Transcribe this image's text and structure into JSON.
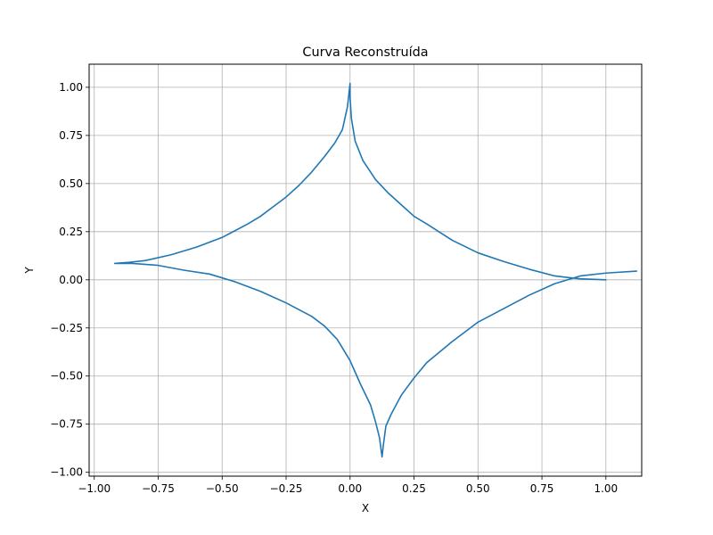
{
  "chart_data": {
    "type": "line",
    "title": "Curva Reconstruída",
    "xlabel": "X",
    "ylabel": "Y",
    "xlim": [
      -1.02,
      1.14
    ],
    "ylim": [
      -1.02,
      1.12
    ],
    "grid": true,
    "xticks": [
      -1.0,
      -0.75,
      -0.5,
      -0.25,
      0.0,
      0.25,
      0.5,
      0.75,
      1.0
    ],
    "xtick_labels": [
      "−1.00",
      "−0.75",
      "−0.50",
      "−0.25",
      "0.00",
      "0.25",
      "0.50",
      "0.75",
      "1.00"
    ],
    "yticks": [
      -1.0,
      -0.75,
      -0.5,
      -0.25,
      0.0,
      0.25,
      0.5,
      0.75,
      1.0
    ],
    "ytick_labels": [
      "−1.00",
      "−0.75",
      "−0.50",
      "−0.25",
      "0.00",
      "0.25",
      "0.50",
      "0.75",
      "1.00"
    ],
    "series": [
      {
        "color": "#1f77b4",
        "points": [
          [
            1.0,
            0.0
          ],
          [
            0.9,
            0.005
          ],
          [
            0.8,
            0.02
          ],
          [
            0.7,
            0.055
          ],
          [
            0.6,
            0.095
          ],
          [
            0.5,
            0.14
          ],
          [
            0.4,
            0.205
          ],
          [
            0.3,
            0.29
          ],
          [
            0.25,
            0.33
          ],
          [
            0.2,
            0.39
          ],
          [
            0.15,
            0.45
          ],
          [
            0.1,
            0.52
          ],
          [
            0.05,
            0.62
          ],
          [
            0.02,
            0.72
          ],
          [
            0.005,
            0.84
          ],
          [
            0.0,
            0.95
          ],
          [
            0.0,
            1.02
          ],
          [
            -0.01,
            0.9
          ],
          [
            -0.03,
            0.78
          ],
          [
            -0.06,
            0.71
          ],
          [
            -0.1,
            0.64
          ],
          [
            -0.15,
            0.56
          ],
          [
            -0.2,
            0.49
          ],
          [
            -0.25,
            0.43
          ],
          [
            -0.3,
            0.38
          ],
          [
            -0.35,
            0.33
          ],
          [
            -0.4,
            0.29
          ],
          [
            -0.5,
            0.22
          ],
          [
            -0.6,
            0.17
          ],
          [
            -0.7,
            0.13
          ],
          [
            -0.8,
            0.1
          ],
          [
            -0.87,
            0.09
          ],
          [
            -0.92,
            0.085
          ],
          [
            -0.85,
            0.085
          ],
          [
            -0.75,
            0.075
          ],
          [
            -0.65,
            0.05
          ],
          [
            -0.55,
            0.03
          ],
          [
            -0.45,
            -0.01
          ],
          [
            -0.35,
            -0.06
          ],
          [
            -0.25,
            -0.12
          ],
          [
            -0.15,
            -0.19
          ],
          [
            -0.1,
            -0.24
          ],
          [
            -0.05,
            -0.31
          ],
          [
            0.0,
            -0.42
          ],
          [
            0.04,
            -0.54
          ],
          [
            0.08,
            -0.65
          ],
          [
            0.1,
            -0.74
          ],
          [
            0.115,
            -0.82
          ],
          [
            0.125,
            -0.92
          ],
          [
            0.13,
            -0.86
          ],
          [
            0.14,
            -0.76
          ],
          [
            0.16,
            -0.7
          ],
          [
            0.2,
            -0.6
          ],
          [
            0.25,
            -0.51
          ],
          [
            0.3,
            -0.43
          ],
          [
            0.4,
            -0.32
          ],
          [
            0.5,
            -0.22
          ],
          [
            0.6,
            -0.15
          ],
          [
            0.7,
            -0.08
          ],
          [
            0.8,
            -0.02
          ],
          [
            0.9,
            0.02
          ],
          [
            1.0,
            0.035
          ],
          [
            1.12,
            0.045
          ]
        ]
      }
    ]
  }
}
